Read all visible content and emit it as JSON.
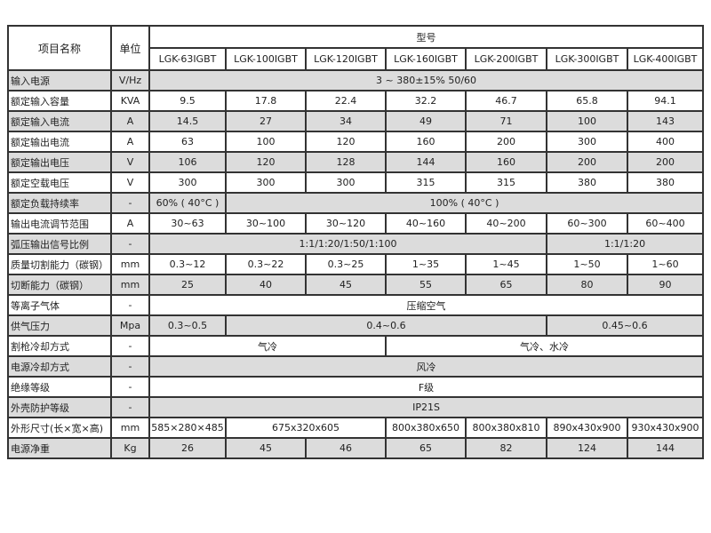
{
  "header": {
    "item_name": "项目名称",
    "unit": "单位",
    "model": "型号",
    "models": [
      "LGK-63IGBT",
      "LGK-100IGBT",
      "LGK-120IGBT",
      "LGK-160IGBT",
      "LGK-200IGBT",
      "LGK-300IGBT",
      "LGK-400IGBT"
    ]
  },
  "rows": [
    {
      "name": "输入电源",
      "unit": "V/Hz",
      "cells": [
        {
          "text": "3 ~ 380±15% 50/60",
          "span": 7
        }
      ]
    },
    {
      "name": "额定输入容量",
      "unit": "KVA",
      "cells": [
        {
          "text": "9.5",
          "span": 1
        },
        {
          "text": "17.8",
          "span": 1
        },
        {
          "text": "22.4",
          "span": 1
        },
        {
          "text": "32.2",
          "span": 1
        },
        {
          "text": "46.7",
          "span": 1
        },
        {
          "text": "65.8",
          "span": 1
        },
        {
          "text": "94.1",
          "span": 1
        }
      ]
    },
    {
      "name": "额定输入电流",
      "unit": "A",
      "cells": [
        {
          "text": "14.5",
          "span": 1
        },
        {
          "text": "27",
          "span": 1
        },
        {
          "text": "34",
          "span": 1
        },
        {
          "text": "49",
          "span": 1
        },
        {
          "text": "71",
          "span": 1
        },
        {
          "text": "100",
          "span": 1
        },
        {
          "text": "143",
          "span": 1
        }
      ]
    },
    {
      "name": "额定输出电流",
      "unit": "A",
      "cells": [
        {
          "text": "63",
          "span": 1
        },
        {
          "text": "100",
          "span": 1
        },
        {
          "text": "120",
          "span": 1
        },
        {
          "text": "160",
          "span": 1
        },
        {
          "text": "200",
          "span": 1
        },
        {
          "text": "300",
          "span": 1
        },
        {
          "text": "400",
          "span": 1
        }
      ]
    },
    {
      "name": "额定输出电压",
      "unit": "V",
      "cells": [
        {
          "text": "106",
          "span": 1
        },
        {
          "text": "120",
          "span": 1
        },
        {
          "text": "128",
          "span": 1
        },
        {
          "text": "144",
          "span": 1
        },
        {
          "text": "160",
          "span": 1
        },
        {
          "text": "200",
          "span": 1
        },
        {
          "text": "200",
          "span": 1
        }
      ]
    },
    {
      "name": "额定空载电压",
      "unit": "V",
      "cells": [
        {
          "text": "300",
          "span": 1
        },
        {
          "text": "300",
          "span": 1
        },
        {
          "text": "300",
          "span": 1
        },
        {
          "text": "315",
          "span": 1
        },
        {
          "text": "315",
          "span": 1
        },
        {
          "text": "380",
          "span": 1
        },
        {
          "text": "380",
          "span": 1
        }
      ]
    },
    {
      "name": "额定负载持续率",
      "unit": "-",
      "cells": [
        {
          "text": "60% ( 40°C )",
          "span": 1
        },
        {
          "text": "100% ( 40°C )",
          "span": 6
        }
      ]
    },
    {
      "name": "输出电流调节范围",
      "unit": "A",
      "cells": [
        {
          "text": "30~63",
          "span": 1
        },
        {
          "text": "30~100",
          "span": 1
        },
        {
          "text": "30~120",
          "span": 1
        },
        {
          "text": "40~160",
          "span": 1
        },
        {
          "text": "40~200",
          "span": 1
        },
        {
          "text": "60~300",
          "span": 1
        },
        {
          "text": "60~400",
          "span": 1
        }
      ]
    },
    {
      "name": "弧压输出信号比例",
      "unit": "-",
      "cells": [
        {
          "text": "1:1/1:20/1:50/1:100",
          "span": 5
        },
        {
          "text": "1:1/1:20",
          "span": 2
        }
      ]
    },
    {
      "name": "质量切割能力（碳钢）",
      "unit": "mm",
      "cells": [
        {
          "text": "0.3~12",
          "span": 1
        },
        {
          "text": "0.3~22",
          "span": 1
        },
        {
          "text": "0.3~25",
          "span": 1
        },
        {
          "text": "1~35",
          "span": 1
        },
        {
          "text": "1~45",
          "span": 1
        },
        {
          "text": "1~50",
          "span": 1
        },
        {
          "text": "1~60",
          "span": 1
        }
      ]
    },
    {
      "name": "切断能力（碳钢）",
      "unit": "mm",
      "cells": [
        {
          "text": "25",
          "span": 1
        },
        {
          "text": "40",
          "span": 1
        },
        {
          "text": "45",
          "span": 1
        },
        {
          "text": "55",
          "span": 1
        },
        {
          "text": "65",
          "span": 1
        },
        {
          "text": "80",
          "span": 1
        },
        {
          "text": "90",
          "span": 1
        }
      ]
    },
    {
      "name": "等离子气体",
      "unit": "-",
      "cells": [
        {
          "text": "压缩空气",
          "span": 7
        }
      ]
    },
    {
      "name": "供气压力",
      "unit": "Mpa",
      "cells": [
        {
          "text": "0.3~0.5",
          "span": 1
        },
        {
          "text": "0.4~0.6",
          "span": 4
        },
        {
          "text": "0.45~0.6",
          "span": 2
        }
      ]
    },
    {
      "name": "割枪冷却方式",
      "unit": "-",
      "cells": [
        {
          "text": "气冷",
          "span": 3
        },
        {
          "text": "气冷、水冷",
          "span": 4
        }
      ]
    },
    {
      "name": "电源冷却方式",
      "unit": "-",
      "cells": [
        {
          "text": "风冷",
          "span": 7
        }
      ]
    },
    {
      "name": "绝缘等级",
      "unit": "-",
      "cells": [
        {
          "text": "F级",
          "span": 7
        }
      ]
    },
    {
      "name": "外壳防护等级",
      "unit": "-",
      "cells": [
        {
          "text": "IP21S",
          "span": 7
        }
      ]
    },
    {
      "name": "外形尺寸(长×宽×高)",
      "unit": "mm",
      "cells": [
        {
          "text": "585×280×485",
          "span": 1
        },
        {
          "text": "675x320x605",
          "span": 2
        },
        {
          "text": "800x380x650",
          "span": 1
        },
        {
          "text": "800x380x810",
          "span": 1
        },
        {
          "text": "890x430x900",
          "span": 1
        },
        {
          "text": "930x430x900",
          "span": 1
        }
      ]
    },
    {
      "name": "电源净重",
      "unit": "Kg",
      "cells": [
        {
          "text": "26",
          "span": 1
        },
        {
          "text": "45",
          "span": 1
        },
        {
          "text": "46",
          "span": 1
        },
        {
          "text": "65",
          "span": 1
        },
        {
          "text": "82",
          "span": 1
        },
        {
          "text": "124",
          "span": 1
        },
        {
          "text": "144",
          "span": 1
        }
      ]
    }
  ]
}
